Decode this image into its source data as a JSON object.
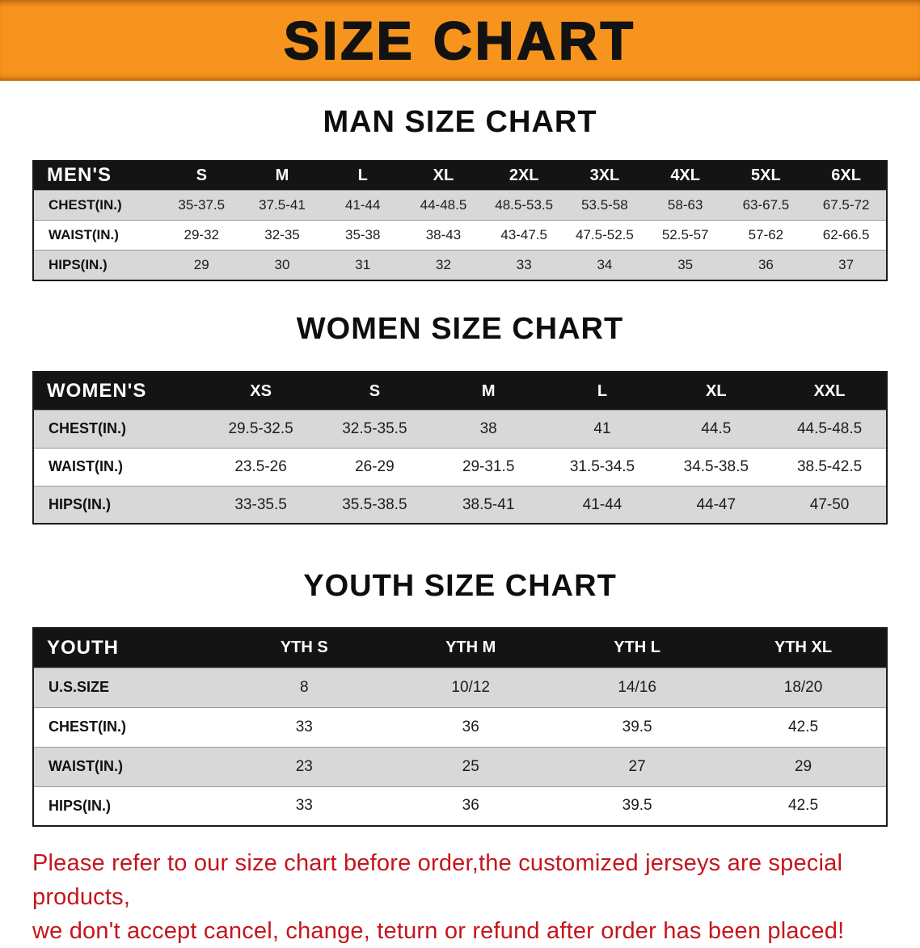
{
  "banner": {
    "title": "SIZE CHART",
    "background_color": "#f7941d",
    "text_color": "#121212"
  },
  "sections": [
    {
      "heading": "MAN SIZE CHART",
      "table": {
        "header": [
          "MEN'S",
          "S",
          "M",
          "L",
          "XL",
          "2XL",
          "3XL",
          "4XL",
          "5XL",
          "6XL"
        ],
        "rows": [
          [
            "CHEST(IN.)",
            "35-37.5",
            "37.5-41",
            "41-44",
            "44-48.5",
            "48.5-53.5",
            "53.5-58",
            "58-63",
            "63-67.5",
            "67.5-72"
          ],
          [
            "WAIST(IN.)",
            "29-32",
            "32-35",
            "35-38",
            "38-43",
            "43-47.5",
            "47.5-52.5",
            "52.5-57",
            "57-62",
            "62-66.5"
          ],
          [
            "HIPS(IN.)",
            "29",
            "30",
            "31",
            "32",
            "33",
            "34",
            "35",
            "36",
            "37"
          ]
        ]
      }
    },
    {
      "heading": "WOMEN SIZE CHART",
      "table": {
        "header": [
          "WOMEN'S",
          "XS",
          "S",
          "M",
          "L",
          "XL",
          "XXL"
        ],
        "rows": [
          [
            "CHEST(IN.)",
            "29.5-32.5",
            "32.5-35.5",
            "38",
            "41",
            "44.5",
            "44.5-48.5"
          ],
          [
            "WAIST(IN.)",
            "23.5-26",
            "26-29",
            "29-31.5",
            "31.5-34.5",
            "34.5-38.5",
            "38.5-42.5"
          ],
          [
            "HIPS(IN.)",
            "33-35.5",
            "35.5-38.5",
            "38.5-41",
            "41-44",
            "44-47",
            "47-50"
          ]
        ]
      }
    },
    {
      "heading": "YOUTH SIZE CHART",
      "table": {
        "header": [
          "YOUTH",
          "YTH S",
          "YTH M",
          "YTH L",
          "YTH XL"
        ],
        "rows": [
          [
            "U.S.SIZE",
            "8",
            "10/12",
            "14/16",
            "18/20"
          ],
          [
            "CHEST(IN.)",
            "33",
            "36",
            "39.5",
            "42.5"
          ],
          [
            "WAIST(IN.)",
            "23",
            "25",
            "27",
            "29"
          ],
          [
            "HIPS(IN.)",
            "33",
            "36",
            "39.5",
            "42.5"
          ]
        ]
      }
    }
  ],
  "footer_note": {
    "lines": [
      "Please refer to our size chart before order,the customized jerseys are special products,",
      "we don't accept cancel, change, teturn or refund after order has been placed!"
    ],
    "text_color": "#c3161c"
  }
}
